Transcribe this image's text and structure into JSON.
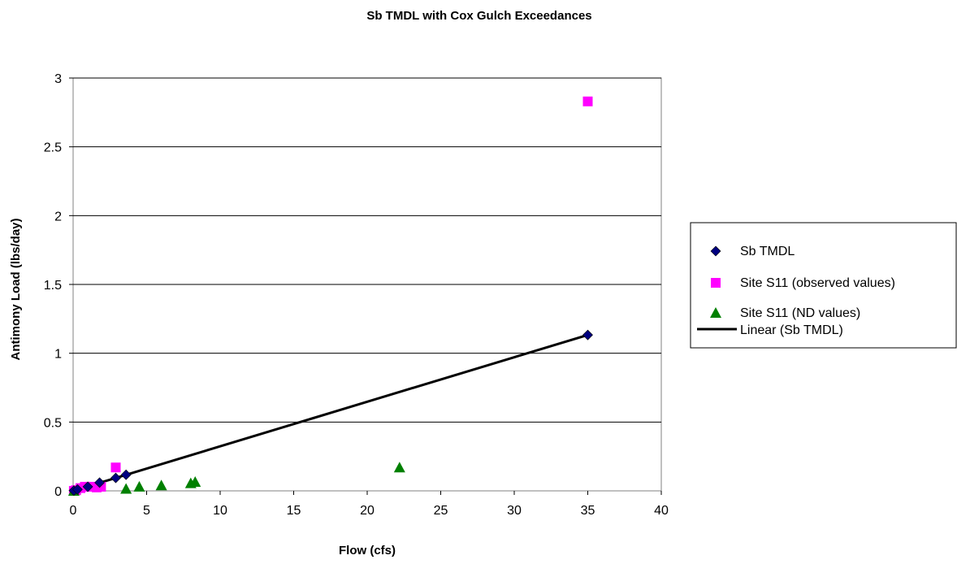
{
  "chart_data": {
    "type": "scatter",
    "title": "Sb TMDL with Cox Gulch Exceedances",
    "xlabel": "Flow (cfs)",
    "ylabel": "Antimony Load (lbs/day)",
    "xlim": [
      0,
      40
    ],
    "ylim": [
      0,
      3
    ],
    "x_ticks": [
      "0",
      "5",
      "10",
      "15",
      "20",
      "25",
      "30",
      "35",
      "40"
    ],
    "y_ticks": [
      "0",
      "0.5",
      "1",
      "1.5",
      "2",
      "2.5",
      "3"
    ],
    "grid": "horizontal major gridlines",
    "legend_position": "right",
    "series": [
      {
        "name": "Sb TMDL",
        "marker": "diamond",
        "color": "#000080",
        "points": [
          {
            "x": 0.05,
            "y": 0.002
          },
          {
            "x": 0.3,
            "y": 0.01
          },
          {
            "x": 1.0,
            "y": 0.03
          },
          {
            "x": 1.8,
            "y": 0.06
          },
          {
            "x": 2.9,
            "y": 0.094
          },
          {
            "x": 3.6,
            "y": 0.117
          },
          {
            "x": 35.0,
            "y": 1.133
          }
        ]
      },
      {
        "name": "Site S11 (observed values)",
        "marker": "square",
        "color": "#FF00FF",
        "points": [
          {
            "x": 0.05,
            "y": 0.0
          },
          {
            "x": 0.2,
            "y": 0.005
          },
          {
            "x": 0.5,
            "y": 0.02
          },
          {
            "x": 0.8,
            "y": 0.03
          },
          {
            "x": 1.2,
            "y": 0.03
          },
          {
            "x": 1.6,
            "y": 0.025
          },
          {
            "x": 1.9,
            "y": 0.03
          },
          {
            "x": 2.9,
            "y": 0.17
          },
          {
            "x": 35.0,
            "y": 2.83
          }
        ]
      },
      {
        "name": "Site S11 (ND values)",
        "marker": "triangle",
        "color": "#008000",
        "points": [
          {
            "x": 0.05,
            "y": 0.0
          },
          {
            "x": 3.6,
            "y": 0.015
          },
          {
            "x": 4.5,
            "y": 0.03
          },
          {
            "x": 6.0,
            "y": 0.04
          },
          {
            "x": 8.0,
            "y": 0.055
          },
          {
            "x": 8.3,
            "y": 0.065
          },
          {
            "x": 22.2,
            "y": 0.17
          }
        ]
      }
    ],
    "trendline": {
      "name": "Linear (Sb TMDL)",
      "color": "#000000",
      "from": {
        "x": 0,
        "y": 0
      },
      "to": {
        "x": 35.0,
        "y": 1.133
      }
    }
  }
}
